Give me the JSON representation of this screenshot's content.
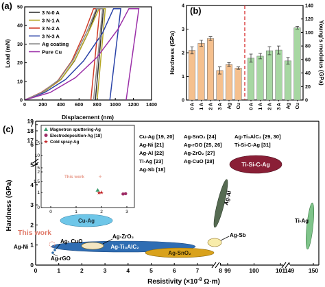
{
  "chart_data": [
    {
      "panel": "(a)",
      "type": "line",
      "xlabel": "Displacement (nm)",
      "ylabel": "Load (mN)",
      "xlim": [
        0,
        1400
      ],
      "ylim": [
        0,
        50
      ],
      "xticks": [
        "0",
        "200",
        "400",
        "600",
        "800",
        "1000",
        "1200",
        "1400"
      ],
      "yticks": [
        "0",
        "10",
        "20",
        "30",
        "40",
        "50"
      ],
      "legend_position": "top-left",
      "series": [
        {
          "name": "3 N-0 A",
          "color": "#333333",
          "loading": [
            [
              0,
              0
            ],
            [
              200,
              4
            ],
            [
              400,
              11
            ],
            [
              550,
              21
            ],
            [
              700,
              36
            ],
            [
              800,
              49
            ]
          ],
          "hold_end": 870,
          "unload_end": 780
        },
        {
          "name": "3 N-1 A",
          "color": "#b7a827",
          "loading": [
            [
              0,
              0
            ],
            [
              200,
              4
            ],
            [
              400,
              11
            ],
            [
              560,
              22
            ],
            [
              720,
              38
            ],
            [
              820,
              49
            ]
          ],
          "hold_end": 890,
          "unload_end": 800
        },
        {
          "name": "3 N-2 A",
          "color": "#d03c28",
          "loading": [
            [
              0,
              0
            ],
            [
              180,
              4
            ],
            [
              360,
              10
            ],
            [
              520,
              21
            ],
            [
              660,
              36
            ],
            [
              760,
              49
            ]
          ],
          "hold_end": 830,
          "unload_end": 730
        },
        {
          "name": "3 N-3 A",
          "color": "#2a43a8",
          "loading": [
            [
              0,
              0
            ],
            [
              220,
              4
            ],
            [
              450,
              11
            ],
            [
              650,
              21
            ],
            [
              860,
              36
            ],
            [
              980,
              49
            ]
          ],
          "hold_end": 1060,
          "unload_end": 940
        },
        {
          "name": "Ag coating",
          "color": "#8c8c8c",
          "loading": [
            [
              0,
              0
            ],
            [
              190,
              4
            ],
            [
              380,
              11
            ],
            [
              540,
              22
            ],
            [
              690,
              37
            ],
            [
              790,
              49
            ]
          ],
          "hold_end": 860,
          "unload_end": 760
        },
        {
          "name": "Pure Cu",
          "color": "#9b2fa8",
          "loading": [
            [
              0,
              0
            ],
            [
              280,
              4
            ],
            [
              560,
              12
            ],
            [
              800,
              23
            ],
            [
              1030,
              38
            ],
            [
              1150,
              49
            ]
          ],
          "hold_end": 1260,
          "unload_end": 1120
        }
      ]
    },
    {
      "panel": "(b)",
      "type": "bar",
      "ylabel_left": "Hardness (GPa)",
      "ylabel_right": "Young's modulus (GPa)",
      "ylim_left": [
        0,
        4
      ],
      "ylim_right": [
        0,
        140
      ],
      "yticks_left": [
        "0",
        "1",
        "2",
        "3",
        "4"
      ],
      "yticks_right": [
        "0",
        "20",
        "40",
        "60",
        "80",
        "100",
        "120",
        "140"
      ],
      "hardness": {
        "color": "#f5c08e",
        "categories": [
          "0 A",
          "1 A",
          "2 A",
          "3 A",
          "Ag",
          "Cu"
        ],
        "values": [
          2.1,
          2.4,
          2.6,
          1.25,
          1.5,
          1.35
        ],
        "errors": [
          0.15,
          0.13,
          0.08,
          0.15,
          0.08,
          0.05
        ]
      },
      "modulus": {
        "color": "#a7d7a2",
        "categories": [
          "0 A",
          "1 A",
          "2 A",
          "3 A",
          "Ag",
          "Cu"
        ],
        "values": [
          62,
          65,
          73,
          74,
          58,
          107
        ],
        "errors": [
          6,
          4,
          6,
          6,
          5,
          2
        ]
      }
    },
    {
      "panel": "(c)",
      "type": "scatter",
      "xlabel_prefix": "Resistivity (×10",
      "xlabel_exp": "-8",
      "xlabel_suffix": " Ω·m)",
      "ylabel": "Hardness (GPa)",
      "ylim": [
        0,
        19
      ],
      "yticks": [
        "0",
        "1",
        "2",
        "3",
        "4",
        "5",
        "6",
        "7",
        "17",
        "18",
        "19"
      ],
      "xticks_segment1": [
        "0",
        "1",
        "2",
        "3",
        "4",
        "5",
        "6",
        "7",
        "8"
      ],
      "xticks_segment2": [
        "99",
        "100",
        "101"
      ],
      "xticks_segment3": [
        "149",
        "150"
      ],
      "references": [
        [
          "Cu-Ag [19, 20]",
          "Ag-SnO₂ [24]",
          "Ag-Ti₃AlC₂ [29, 30]"
        ],
        [
          "Ag-Ni [21]",
          "Ag-rGO [25, 26]",
          "Ti-Si-C-Ag [31]"
        ],
        [
          "Ag-Al [22]",
          "Ag-ZrO₂ [27]",
          ""
        ],
        [
          "Ti-Ag [23]",
          "Ag-CuO [28]",
          ""
        ],
        [
          "Ag-Sb [18]",
          "",
          ""
        ]
      ],
      "regions": [
        {
          "name": "Cu-Ag",
          "color": "#6ec6e8"
        },
        {
          "name": "Ag-Ti₃AlC₂",
          "color": "#2f6db3"
        },
        {
          "name": "Ag-SnO₂",
          "color": "#d9a21c"
        },
        {
          "name": "Ag-ZrO₂",
          "color": "#f3e6c2"
        },
        {
          "name": "Ag-Sb",
          "color": "#f8ecaa"
        },
        {
          "name": "Ag-Al",
          "color": "#566b52"
        },
        {
          "name": "Ti-Si-C-Ag",
          "color": "#8a1f36"
        },
        {
          "name": "Ti-Ag",
          "color": "#7fc48a"
        }
      ],
      "point_labels": [
        "Ag-Ni",
        "Ag- CuO",
        "Ag-rGO",
        "This work"
      ],
      "inset": {
        "xticks": [
          "0",
          "1",
          "2",
          "3"
        ],
        "yticks": [
          "0",
          "1",
          "1.5",
          "2",
          "5",
          "10",
          "15"
        ],
        "legend": [
          "Magnetron sputtering-Ag",
          "Electrodeposition-Ag [18]",
          "Cold spray-Ag"
        ],
        "this_work_label": "This work",
        "points": [
          {
            "group": "Magnetron sputtering-Ag",
            "color": "#3a9b6d",
            "x": 1.85,
            "y": 1.1
          },
          {
            "group": "Electrodeposition-Ag [18]",
            "color": "#9d2a64",
            "x": 2.85,
            "y": 0.9
          },
          {
            "group": "Electrodeposition-Ag [18]",
            "color": "#9d2a64",
            "x": 2.95,
            "y": 0.92
          },
          {
            "group": "Cold spray-Ag",
            "color": "#c4272a",
            "x": 1.9,
            "y": 1.0
          },
          {
            "group": "Cold spray-Ag",
            "color": "#c4272a",
            "x": 2.0,
            "y": 1.02
          },
          {
            "group": "This work",
            "color": "#e89a8a",
            "x": 1.95,
            "y": 1.75
          }
        ]
      }
    }
  ]
}
